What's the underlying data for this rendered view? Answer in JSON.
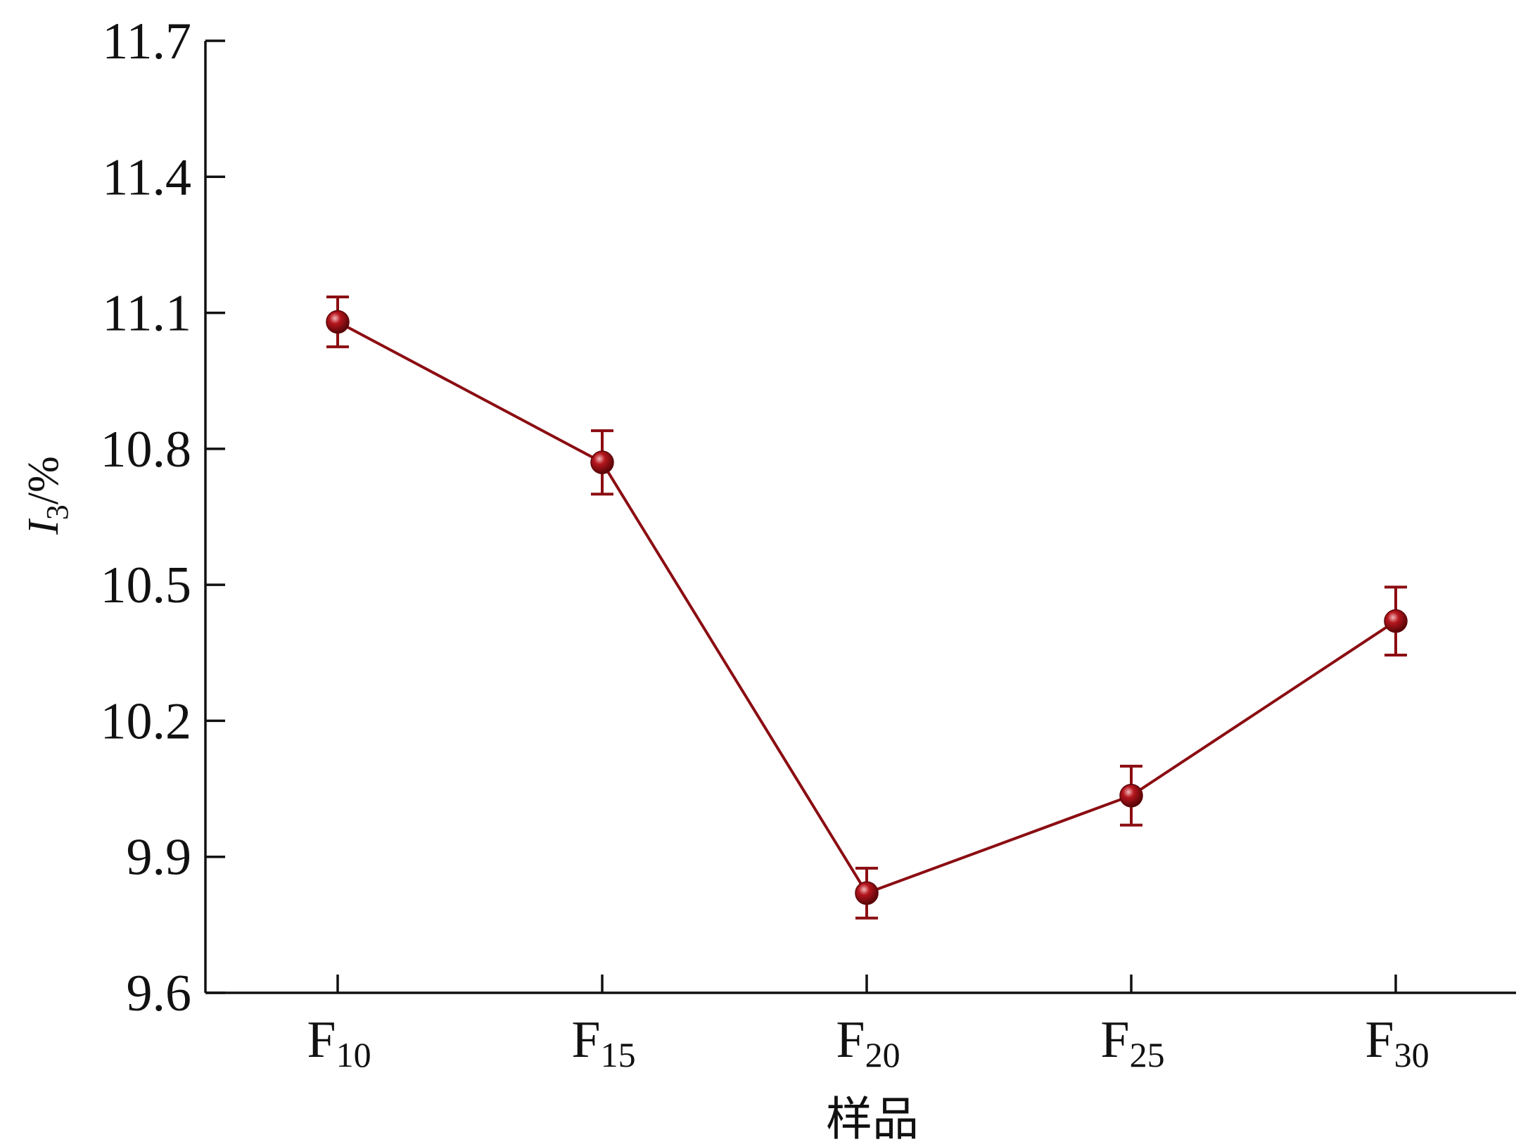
{
  "chart_data": {
    "type": "line",
    "categories": [
      {
        "main": "F",
        "sub": "10"
      },
      {
        "main": "F",
        "sub": "15"
      },
      {
        "main": "F",
        "sub": "20"
      },
      {
        "main": "F",
        "sub": "25"
      },
      {
        "main": "F",
        "sub": "30"
      }
    ],
    "series": [
      {
        "values": [
          11.08,
          10.77,
          9.82,
          10.035,
          10.42
        ],
        "errors": [
          0.055,
          0.07,
          0.055,
          0.065,
          0.075
        ],
        "color": "#8b0d12"
      }
    ],
    "ylim": [
      9.6,
      11.7
    ],
    "yticks": [
      "9.6",
      "9.9",
      "10.2",
      "10.5",
      "10.8",
      "11.1",
      "11.4",
      "11.7"
    ],
    "ylabel": {
      "main": "I",
      "sub": "3",
      "rest": "/%"
    },
    "xlabel": "样品",
    "grid": false
  }
}
